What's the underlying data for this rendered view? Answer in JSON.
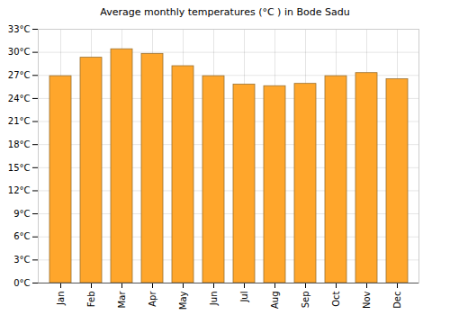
{
  "chart_data": {
    "type": "bar",
    "title": "Average monthly temperatures (°C ) in Bode Sadu",
    "categories": [
      "Jan",
      "Feb",
      "Mar",
      "Apr",
      "May",
      "Jun",
      "Jul",
      "Aug",
      "Sep",
      "Oct",
      "Nov",
      "Dec"
    ],
    "values": [
      26.9,
      29.3,
      30.4,
      29.8,
      28.2,
      26.9,
      25.8,
      25.6,
      25.9,
      26.9,
      27.3,
      26.5
    ],
    "color": "#ffa62b",
    "ylim": [
      0,
      33
    ],
    "yticks": [
      {
        "value": 0,
        "label": "0°C"
      },
      {
        "value": 3,
        "label": "3°C"
      },
      {
        "value": 6,
        "label": "6°C"
      },
      {
        "value": 9,
        "label": "9°C"
      },
      {
        "value": 12,
        "label": "12°C"
      },
      {
        "value": 15,
        "label": "15°C"
      },
      {
        "value": 18,
        "label": "18°C"
      },
      {
        "value": 21,
        "label": "21°C"
      },
      {
        "value": 24,
        "label": "24°C"
      },
      {
        "value": 27,
        "label": "27°C"
      },
      {
        "value": 30,
        "label": "30°C"
      },
      {
        "value": 33,
        "label": "33°C"
      }
    ],
    "grid": true
  }
}
